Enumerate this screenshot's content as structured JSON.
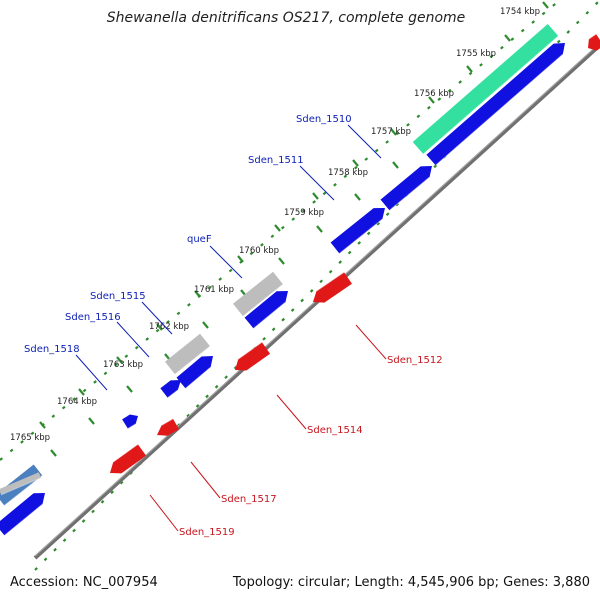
{
  "title": "Shewanella denitrificans OS217, complete genome",
  "accession": "Accession: NC_007954",
  "summary": "Topology: circular; Length: 4,545,906 bp; Genes: 3,880",
  "colors": {
    "forward": "#1010e0",
    "reverse": "#e01818",
    "pseudo": "#bdbdbd",
    "rna": "#33e0a0",
    "partial": "#4a7fc0",
    "backbone": "#707070",
    "ticks": "#2e8b2e",
    "label_fwd": "#0d1fb5",
    "label_rev": "#c8161d"
  },
  "ticks": [
    {
      "label": "1754 kbp"
    },
    {
      "label": "1755 kbp"
    },
    {
      "label": "1756 kbp"
    },
    {
      "label": "1757 kbp"
    },
    {
      "label": "1758 kbp"
    },
    {
      "label": "1759 kbp"
    },
    {
      "label": "1760 kbp"
    },
    {
      "label": "1761 kbp"
    },
    {
      "label": "1762 kbp"
    },
    {
      "label": "1763 kbp"
    },
    {
      "label": "1764 kbp"
    },
    {
      "label": "1765 kbp"
    }
  ],
  "gene_labels": [
    {
      "name": "Sden_1510",
      "strand": "fwd"
    },
    {
      "name": "Sden_1511",
      "strand": "fwd"
    },
    {
      "name": "queF",
      "strand": "fwd"
    },
    {
      "name": "Sden_1515",
      "strand": "fwd"
    },
    {
      "name": "Sden_1516",
      "strand": "fwd"
    },
    {
      "name": "Sden_1518",
      "strand": "fwd"
    },
    {
      "name": "Sden_1512",
      "strand": "rev"
    },
    {
      "name": "Sden_1514",
      "strand": "rev"
    },
    {
      "name": "Sden_1517",
      "strand": "rev"
    },
    {
      "name": "Sden_1519",
      "strand": "rev"
    }
  ]
}
